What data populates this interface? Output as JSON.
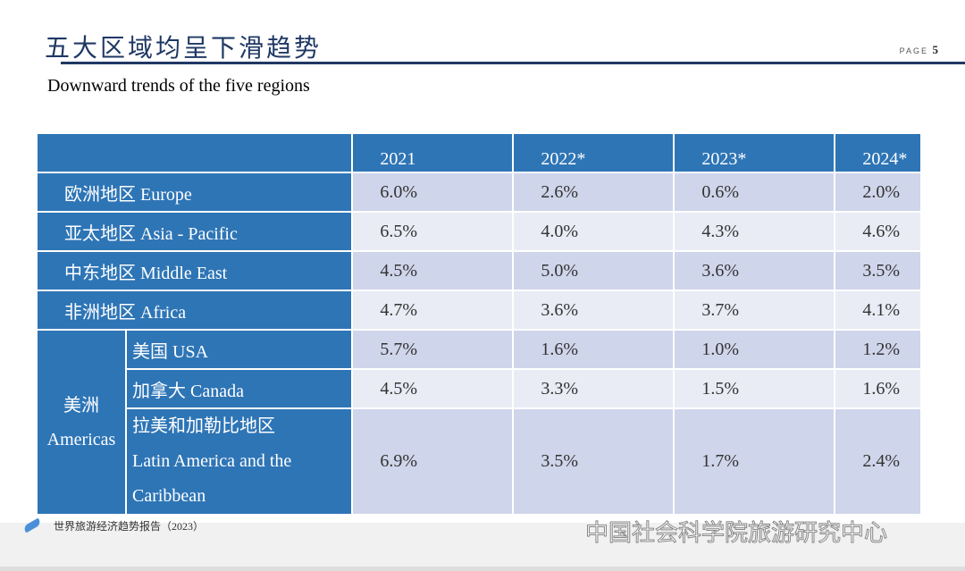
{
  "header": {
    "title": "五大区域均呈下滑趋势",
    "page_label": "PAGE",
    "page_number": "5",
    "subtitle": "Downward trends of the five regions"
  },
  "table": {
    "columns": [
      "2021",
      "2022*",
      "2023*",
      "2024*"
    ],
    "rows": [
      {
        "label": "欧洲地区  Europe",
        "values": [
          "6.0%",
          "2.6%",
          "0.6%",
          "2.0%"
        ]
      },
      {
        "label": "亚太地区  Asia - Pacific",
        "values": [
          "6.5%",
          "4.0%",
          "4.3%",
          "4.6%"
        ]
      },
      {
        "label": "中东地区  Middle East",
        "values": [
          "4.5%",
          "5.0%",
          "3.6%",
          "3.5%"
        ]
      },
      {
        "label": "非洲地区  Africa",
        "values": [
          "4.7%",
          "3.6%",
          "3.7%",
          "4.1%"
        ]
      }
    ],
    "americas": {
      "label_cn": "美洲",
      "label_en": "Americas",
      "rows": [
        {
          "label": "美国 USA",
          "values": [
            "5.7%",
            "1.6%",
            "1.0%",
            "1.2%"
          ]
        },
        {
          "label": "加拿大 Canada",
          "values": [
            "4.5%",
            "3.3%",
            "1.5%",
            "1.6%"
          ]
        },
        {
          "label_cn": "拉美和加勒比地区",
          "label_en1": "Latin America and the",
          "label_en2": "Caribbean",
          "values": [
            "6.9%",
            "3.5%",
            "1.7%",
            "2.4%"
          ]
        }
      ]
    }
  },
  "footer": {
    "report": "世界旅游经济趋势报告（2023）",
    "watermark": "中国社会科学院旅游研究中心"
  },
  "colors": {
    "header_blue": "#2e75b6",
    "title_navy": "#1f3864",
    "cell_dark": "#cfd5ea",
    "cell_light": "#e9ebf5"
  }
}
